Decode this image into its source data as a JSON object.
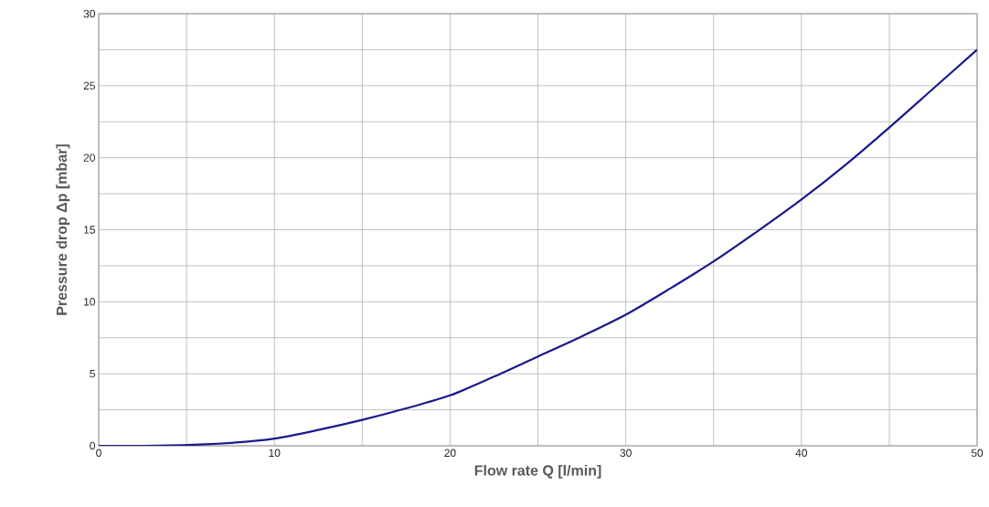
{
  "chart_data": {
    "type": "line",
    "xlabel": "Flow rate Q [l/min]",
    "ylabel": "Pressure drop Δp [mbar]",
    "xlim": [
      0,
      50
    ],
    "ylim": [
      0,
      30
    ],
    "xticks": [
      0,
      {
        "value": 5,
        "label": null
      },
      10,
      {
        "value": 15,
        "label": null
      },
      20,
      {
        "value": 25,
        "label": null
      },
      30,
      {
        "value": 35,
        "label": null
      },
      40,
      {
        "value": 45,
        "label": null
      },
      50
    ],
    "yticks": [
      0,
      {
        "value": 2.5,
        "label": null
      },
      5,
      {
        "value": 7.5,
        "label": null
      },
      10,
      {
        "value": 12.5,
        "label": null
      },
      15,
      {
        "value": 17.5,
        "label": null
      },
      20,
      {
        "value": 22.5,
        "label": null
      },
      25,
      {
        "value": 27.5,
        "label": null
      },
      30
    ],
    "grid": true,
    "marker": "none",
    "line_style": "solid",
    "x": [
      0,
      2.5,
      5,
      7.5,
      10,
      12.5,
      15,
      17.5,
      20,
      22.5,
      25,
      27.5,
      30,
      32.5,
      35,
      37.5,
      40,
      42.5,
      45,
      47.5,
      50
    ],
    "series": [
      {
        "color": "#1a1a8c",
        "values": [
          0,
          0,
          0.05,
          0.2,
          0.5,
          1.1,
          1.8,
          2.6,
          3.5,
          4.8,
          6.2,
          7.6,
          9.1,
          10.9,
          12.8,
          14.9,
          17.1,
          19.5,
          22.1,
          24.8,
          27.5
        ]
      }
    ]
  }
}
